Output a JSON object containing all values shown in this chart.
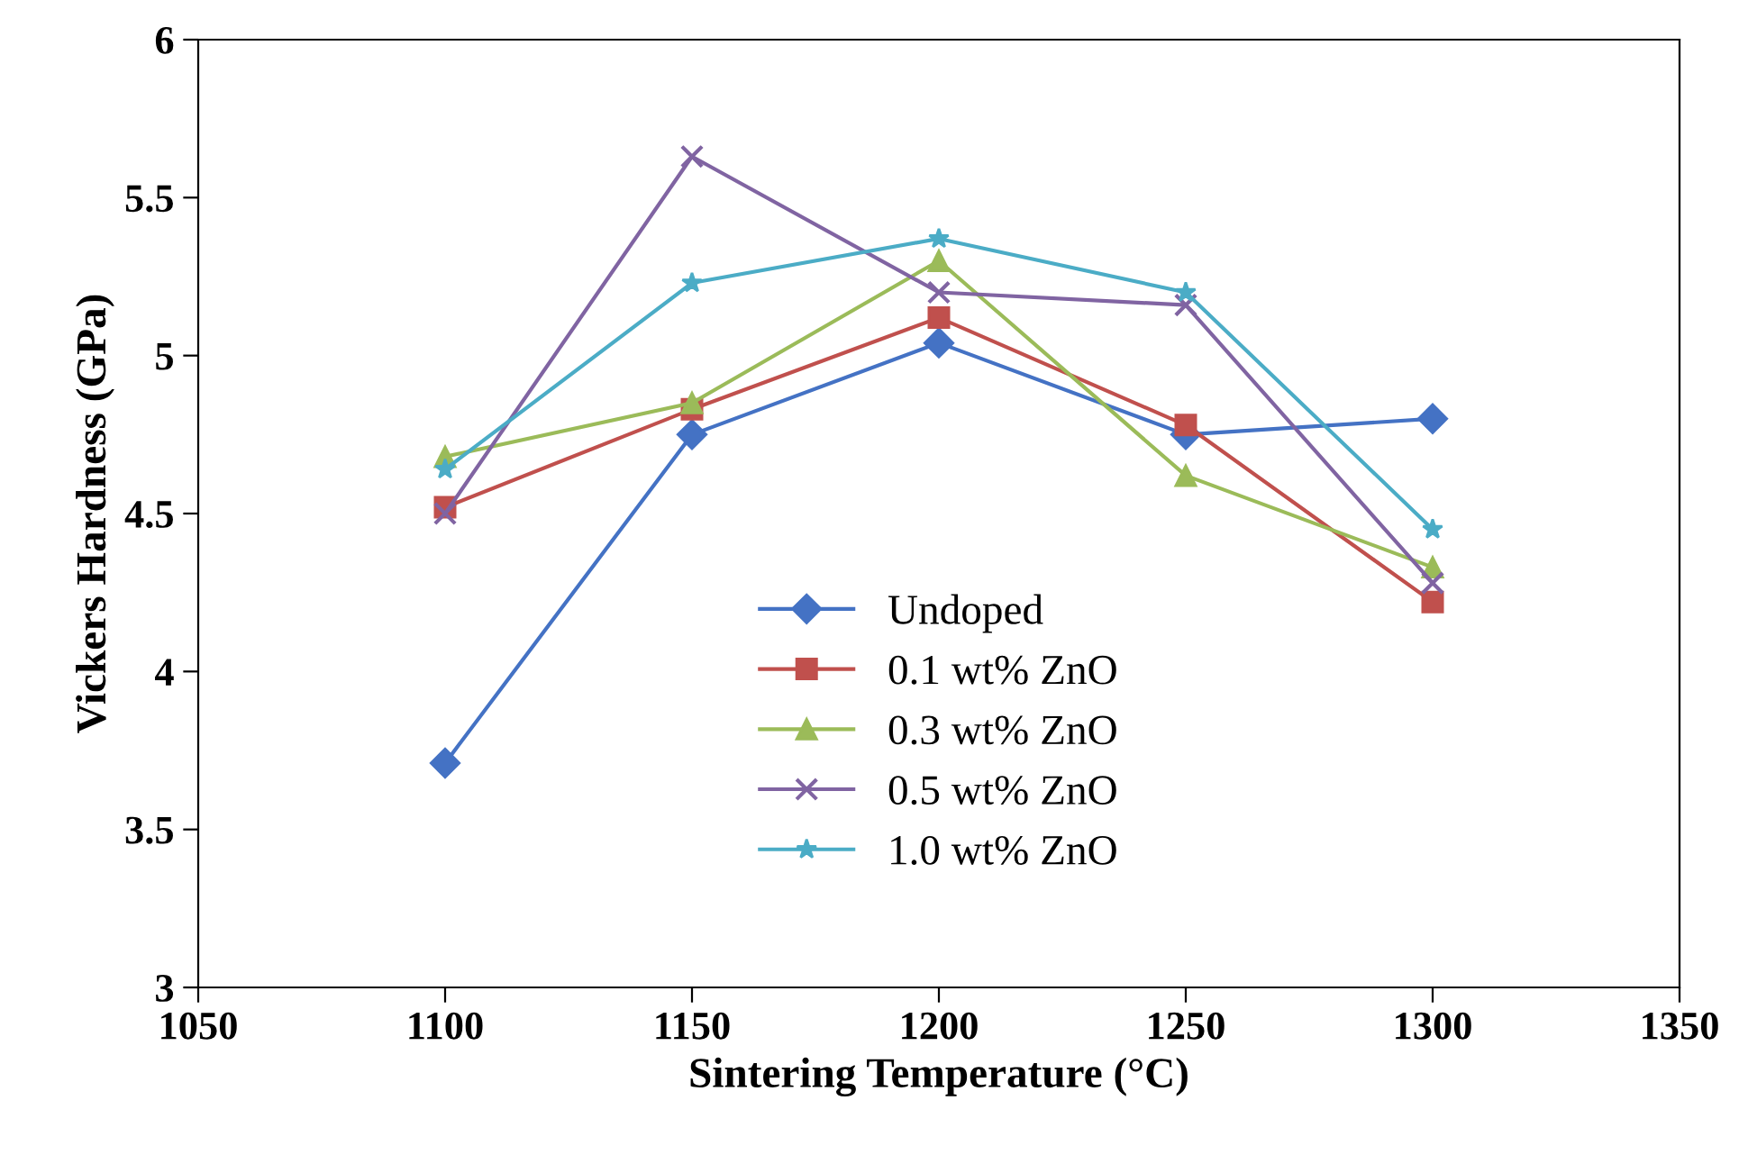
{
  "chart_data": {
    "type": "line",
    "xlabel": "Sintering Temperature (°C)",
    "ylabel": "Vickers Hardness (GPa)",
    "x": [
      1100,
      1150,
      1200,
      1250,
      1300
    ],
    "xlim": [
      1050,
      1350
    ],
    "xticks": [
      1050,
      1100,
      1150,
      1200,
      1250,
      1300,
      1350
    ],
    "ylim": [
      3,
      6
    ],
    "yticks": [
      3,
      3.5,
      4,
      4.5,
      5,
      5.5,
      6
    ],
    "grid": false,
    "legend": "bottom",
    "line_style": "solid",
    "series": [
      {
        "name": "Undoped",
        "color": "#4472c4",
        "marker": "diamond",
        "values": [
          3.71,
          4.75,
          5.04,
          4.75,
          4.8
        ]
      },
      {
        "name": "0.1 wt% ZnO",
        "color": "#c0504d",
        "marker": "square",
        "values": [
          4.52,
          4.83,
          5.12,
          4.78,
          4.22
        ]
      },
      {
        "name": "0.3 wt% ZnO",
        "color": "#9bbb59",
        "marker": "triangle",
        "values": [
          4.68,
          4.85,
          5.3,
          4.62,
          4.33
        ]
      },
      {
        "name": "0.5 wt% ZnO",
        "color": "#8064a2",
        "marker": "cross",
        "values": [
          4.5,
          5.63,
          5.2,
          5.16,
          4.28
        ]
      },
      {
        "name": "1.0 wt% ZnO",
        "color": "#4bacc6",
        "marker": "star",
        "values": [
          4.64,
          5.23,
          5.37,
          5.2,
          4.45
        ]
      }
    ]
  }
}
